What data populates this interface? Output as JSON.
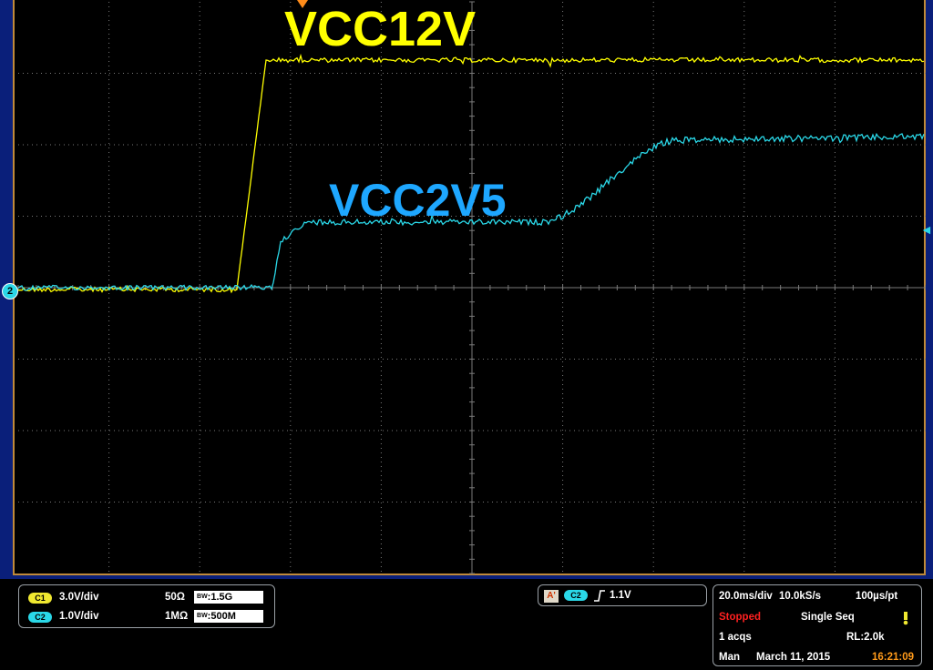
{
  "labels": {
    "ch1_trace": "VCC12V",
    "ch2_trace": "VCC2V5"
  },
  "markers": {
    "ch2_ground": "2",
    "trigger_level_arrow": "◄"
  },
  "channels": [
    {
      "chip": "C1",
      "scale": "3.0V/div",
      "coupling": "50Ω",
      "bw_prefix": "B",
      "bw_sub": "W",
      "bw": ":1.5G"
    },
    {
      "chip": "C2",
      "scale": "1.0V/div",
      "coupling": "1MΩ",
      "bw_prefix": "B",
      "bw_sub": "W",
      "bw": ":500M"
    }
  ],
  "trigger": {
    "mode_badge": "A'",
    "source": "C2",
    "slope_icon": "rising-edge-icon",
    "level": "1.1V"
  },
  "acquisition": {
    "timebase": "20.0ms/div",
    "sample_rate": "10.0kS/s",
    "resolution": "100µs/pt",
    "state": "Stopped",
    "mode": "Single Seq",
    "acqs": "1 acqs",
    "record_length": "RL:2.0k",
    "trigger_mode": "Man",
    "date": "March 11, 2015",
    "time": "16:21:09"
  },
  "colors": {
    "ch1": "#ffff00",
    "ch2": "#2ad8e8",
    "label_ch2": "#1ea7ff",
    "grid": "#7a7a7a",
    "background": "#000000",
    "stopped": "#ff2020",
    "time": "#ff9a1a"
  }
}
